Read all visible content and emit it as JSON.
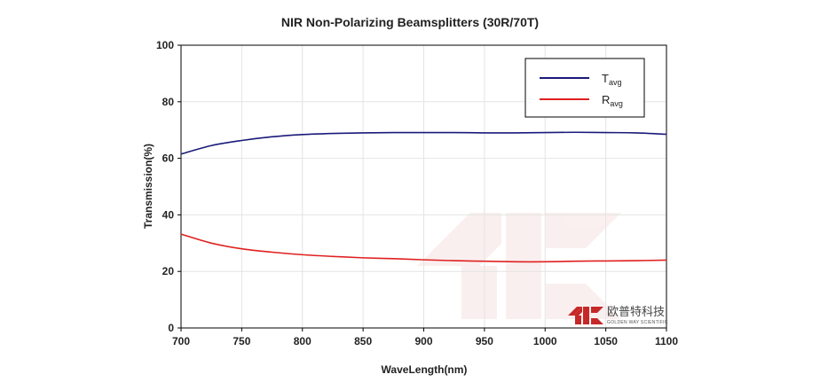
{
  "chart_data": {
    "type": "line",
    "title": "NIR Non-Polarizing Beamsplitters  (30R/70T)",
    "xlabel": "WaveLength(nm)",
    "ylabel": "Transmission(%)",
    "xlim": [
      700,
      1100
    ],
    "ylim": [
      0,
      100
    ],
    "xticks": [
      700,
      750,
      800,
      850,
      900,
      950,
      1000,
      1050,
      1100
    ],
    "yticks": [
      0,
      20,
      40,
      60,
      80,
      100
    ],
    "grid": true,
    "legend_position": "top-right",
    "series": [
      {
        "name_main": "T",
        "name_sub": "avg",
        "color": "#1a1a7a",
        "x": [
          700,
          725,
          750,
          775,
          800,
          825,
          850,
          875,
          900,
          925,
          950,
          975,
          1000,
          1025,
          1050,
          1075,
          1100
        ],
        "y": [
          61.5,
          64.5,
          66.3,
          67.6,
          68.4,
          68.8,
          69.0,
          69.1,
          69.1,
          69.1,
          69.0,
          69.0,
          69.1,
          69.2,
          69.1,
          69.0,
          68.5
        ]
      },
      {
        "name_main": "R",
        "name_sub": "avg",
        "color": "#e02020",
        "x": [
          700,
          725,
          750,
          775,
          800,
          825,
          850,
          875,
          900,
          925,
          950,
          975,
          1000,
          1025,
          1050,
          1075,
          1100
        ],
        "y": [
          33.2,
          30.0,
          28.0,
          26.8,
          25.9,
          25.3,
          24.8,
          24.5,
          24.1,
          23.8,
          23.6,
          23.4,
          23.4,
          23.6,
          23.7,
          23.8,
          24.0
        ]
      }
    ]
  },
  "watermark": {
    "text": "欧普特科技",
    "subtext": "GOLDEN WAY SCIENTIFIC",
    "color": "#c62828"
  }
}
